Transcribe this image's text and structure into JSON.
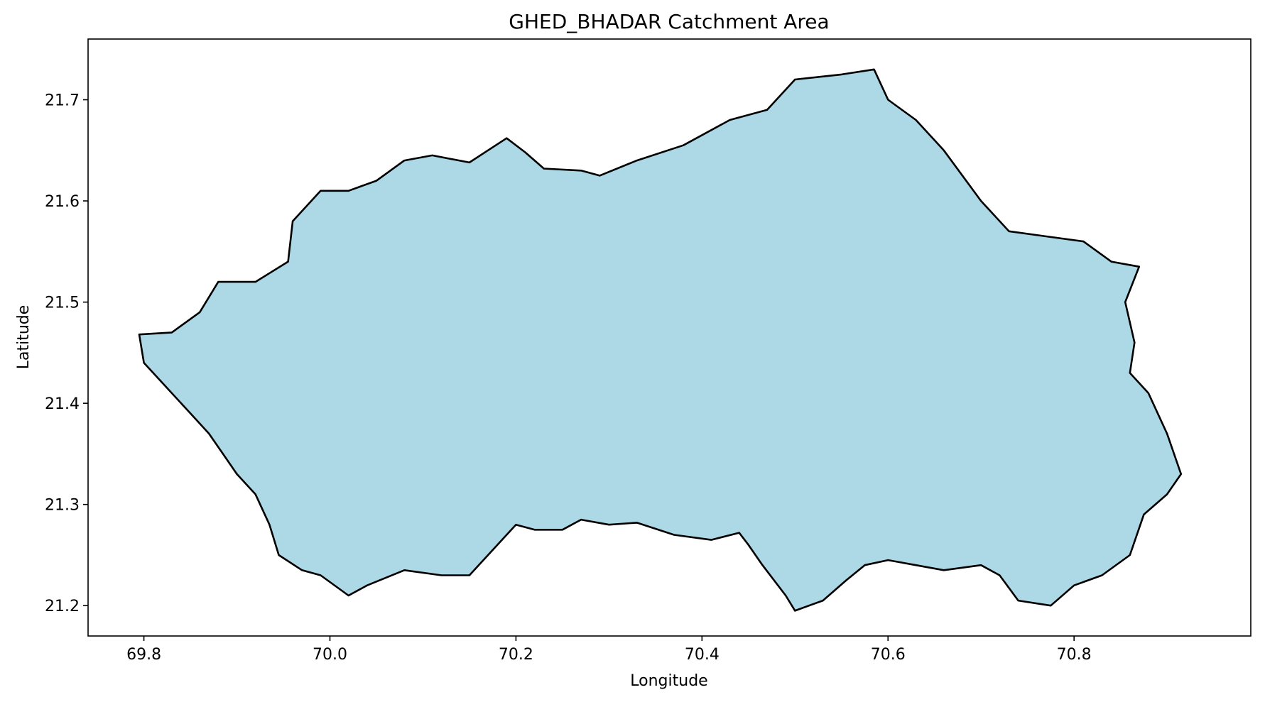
{
  "chart_data": {
    "type": "map",
    "title": "GHED_BHADAR Catchment Area",
    "xlabel": "Longitude",
    "ylabel": "Latitude",
    "xlim": [
      69.74,
      70.99
    ],
    "ylim": [
      21.17,
      21.76
    ],
    "xticks": [
      69.8,
      70.0,
      70.2,
      70.4,
      70.6,
      70.8
    ],
    "xtick_labels": [
      "69.8",
      "70.0",
      "70.2",
      "70.4",
      "70.6",
      "70.8"
    ],
    "yticks": [
      21.2,
      21.3,
      21.4,
      21.5,
      21.6,
      21.7
    ],
    "ytick_labels": [
      "21.2",
      "21.3",
      "21.4",
      "21.5",
      "21.6",
      "21.7"
    ],
    "grid": false,
    "fill_color": "#add8e6",
    "edge_color": "#000000",
    "polygon": [
      [
        69.795,
        21.468
      ],
      [
        69.83,
        21.47
      ],
      [
        69.86,
        21.49
      ],
      [
        69.88,
        21.52
      ],
      [
        69.92,
        21.52
      ],
      [
        69.955,
        21.54
      ],
      [
        69.96,
        21.58
      ],
      [
        69.99,
        21.61
      ],
      [
        70.02,
        21.61
      ],
      [
        70.05,
        21.62
      ],
      [
        70.08,
        21.64
      ],
      [
        70.11,
        21.645
      ],
      [
        70.15,
        21.638
      ],
      [
        70.19,
        21.662
      ],
      [
        70.21,
        21.648
      ],
      [
        70.23,
        21.632
      ],
      [
        70.27,
        21.63
      ],
      [
        70.29,
        21.625
      ],
      [
        70.33,
        21.64
      ],
      [
        70.38,
        21.655
      ],
      [
        70.43,
        21.68
      ],
      [
        70.47,
        21.69
      ],
      [
        70.5,
        21.72
      ],
      [
        70.55,
        21.725
      ],
      [
        70.585,
        21.73
      ],
      [
        70.6,
        21.7
      ],
      [
        70.63,
        21.68
      ],
      [
        70.66,
        21.65
      ],
      [
        70.7,
        21.6
      ],
      [
        70.73,
        21.57
      ],
      [
        70.77,
        21.565
      ],
      [
        70.81,
        21.56
      ],
      [
        70.84,
        21.54
      ],
      [
        70.87,
        21.535
      ],
      [
        70.855,
        21.5
      ],
      [
        70.865,
        21.46
      ],
      [
        70.86,
        21.43
      ],
      [
        70.88,
        21.41
      ],
      [
        70.9,
        21.37
      ],
      [
        70.915,
        21.33
      ],
      [
        70.9,
        21.31
      ],
      [
        70.875,
        21.29
      ],
      [
        70.86,
        21.25
      ],
      [
        70.83,
        21.23
      ],
      [
        70.8,
        21.22
      ],
      [
        70.775,
        21.2
      ],
      [
        70.74,
        21.205
      ],
      [
        70.72,
        21.23
      ],
      [
        70.7,
        21.24
      ],
      [
        70.66,
        21.235
      ],
      [
        70.63,
        21.24
      ],
      [
        70.6,
        21.245
      ],
      [
        70.575,
        21.24
      ],
      [
        70.555,
        21.225
      ],
      [
        70.53,
        21.205
      ],
      [
        70.5,
        21.195
      ],
      [
        70.49,
        21.21
      ],
      [
        70.465,
        21.24
      ],
      [
        70.45,
        21.26
      ],
      [
        70.44,
        21.272
      ],
      [
        70.41,
        21.265
      ],
      [
        70.37,
        21.27
      ],
      [
        70.33,
        21.282
      ],
      [
        70.3,
        21.28
      ],
      [
        70.27,
        21.285
      ],
      [
        70.25,
        21.275
      ],
      [
        70.22,
        21.275
      ],
      [
        70.2,
        21.28
      ],
      [
        70.17,
        21.25
      ],
      [
        70.15,
        21.23
      ],
      [
        70.12,
        21.23
      ],
      [
        70.08,
        21.235
      ],
      [
        70.04,
        21.22
      ],
      [
        70.02,
        21.21
      ],
      [
        69.99,
        21.23
      ],
      [
        69.97,
        21.235
      ],
      [
        69.945,
        21.25
      ],
      [
        69.935,
        21.28
      ],
      [
        69.92,
        21.31
      ],
      [
        69.9,
        21.33
      ],
      [
        69.885,
        21.35
      ],
      [
        69.87,
        21.37
      ],
      [
        69.85,
        21.39
      ],
      [
        69.82,
        21.42
      ],
      [
        69.8,
        21.44
      ]
    ]
  }
}
